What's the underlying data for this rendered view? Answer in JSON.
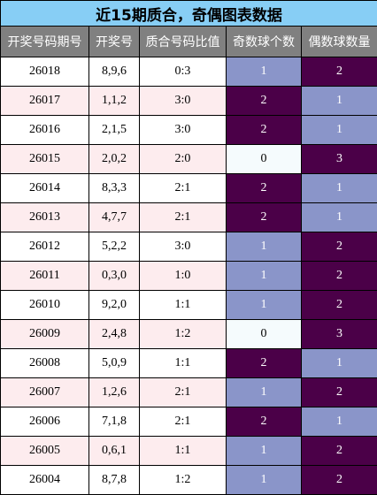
{
  "title": "近15期质合，奇偶图表数据",
  "headers": [
    "开奖号码期号",
    "开奖号",
    "质合号码比值",
    "奇数球个数",
    "偶数球数量"
  ],
  "colors": {
    "dark": "#4b0048",
    "mid": "#8a95c9",
    "light": "#f5fbfd",
    "title_bg": "#87cef5",
    "header_bg": "#808080",
    "alt_row": "#fdecee"
  },
  "rows": [
    {
      "issue": "26018",
      "numbers": "8,9,6",
      "ratio": "0:3",
      "odd": "1",
      "even": "2"
    },
    {
      "issue": "26017",
      "numbers": "1,1,2",
      "ratio": "3:0",
      "odd": "2",
      "even": "1"
    },
    {
      "issue": "26016",
      "numbers": "2,1,5",
      "ratio": "3:0",
      "odd": "2",
      "even": "1"
    },
    {
      "issue": "26015",
      "numbers": "2,0,2",
      "ratio": "2:0",
      "odd": "0",
      "even": "3"
    },
    {
      "issue": "26014",
      "numbers": "8,3,3",
      "ratio": "2:1",
      "odd": "2",
      "even": "1"
    },
    {
      "issue": "26013",
      "numbers": "4,7,7",
      "ratio": "2:1",
      "odd": "2",
      "even": "1"
    },
    {
      "issue": "26012",
      "numbers": "5,2,2",
      "ratio": "3:0",
      "odd": "1",
      "even": "2"
    },
    {
      "issue": "26011",
      "numbers": "0,3,0",
      "ratio": "1:0",
      "odd": "1",
      "even": "2"
    },
    {
      "issue": "26010",
      "numbers": "9,2,0",
      "ratio": "1:1",
      "odd": "1",
      "even": "2"
    },
    {
      "issue": "26009",
      "numbers": "2,4,8",
      "ratio": "1:2",
      "odd": "0",
      "even": "3"
    },
    {
      "issue": "26008",
      "numbers": "5,0,9",
      "ratio": "1:1",
      "odd": "2",
      "even": "1"
    },
    {
      "issue": "26007",
      "numbers": "1,2,6",
      "ratio": "2:1",
      "odd": "1",
      "even": "2"
    },
    {
      "issue": "26006",
      "numbers": "7,1,8",
      "ratio": "2:1",
      "odd": "2",
      "even": "1"
    },
    {
      "issue": "26005",
      "numbers": "0,6,1",
      "ratio": "1:1",
      "odd": "1",
      "even": "2"
    },
    {
      "issue": "26004",
      "numbers": "8,7,8",
      "ratio": "1:2",
      "odd": "1",
      "even": "2"
    }
  ]
}
